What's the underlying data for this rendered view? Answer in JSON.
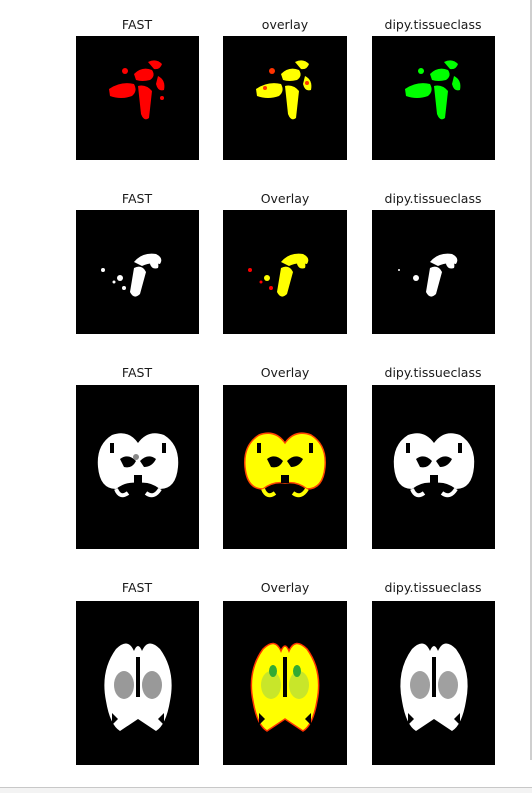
{
  "rows": [
    {
      "titles": [
        "FAST",
        "overlay",
        "dipy.tissueclass"
      ],
      "colors": {
        "left": "#ff0000",
        "mid": "#ffff00",
        "mid_accent": "#ff3300",
        "right": "#00ff00"
      },
      "icon": "sagittal-small"
    },
    {
      "titles": [
        "FAST",
        "Overlay",
        "dipy.tissueclass"
      ],
      "colors": {
        "left": "#ffffff",
        "mid": "#ffff00",
        "mid_accent": "#ff0000",
        "right": "#ffffff"
      },
      "icon": "sagittal-wm"
    },
    {
      "titles": [
        "FAST",
        "Overlay",
        "dipy.tissueclass"
      ],
      "colors": {
        "left": "#ffffff",
        "mid": "#ffff00",
        "mid_accent": "#ff4400",
        "right": "#ffffff"
      },
      "icon": "coronal-wm"
    },
    {
      "titles": [
        "FAST",
        "Overlay",
        "dipy.tissueclass"
      ],
      "colors": {
        "left": "#ffffff",
        "mid": "#ffff00",
        "mid_accent": "#33cc33",
        "right": "#ffffff"
      },
      "icon": "axial-wm"
    }
  ]
}
